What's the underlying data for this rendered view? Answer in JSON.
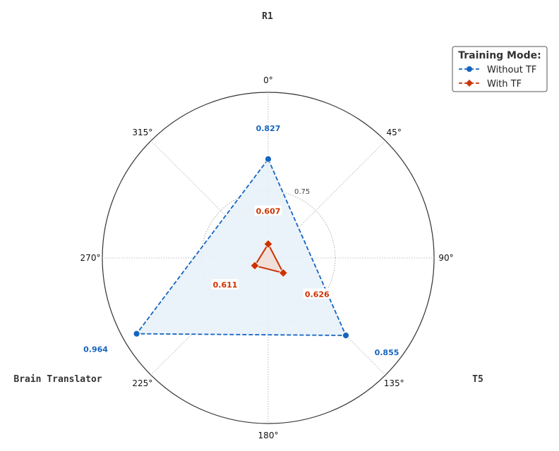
{
  "chart_data": {
    "type": "radar",
    "categories": [
      "R1",
      "T5",
      "Brain Translator"
    ],
    "angular_ticks": [
      "0°",
      "45°",
      "90°",
      "135°",
      "180°",
      "225°",
      "270°",
      "315°"
    ],
    "radial_tick_label": "0.75",
    "series": [
      {
        "name": "Without TF",
        "values": [
          0.827,
          0.855,
          0.964
        ],
        "labels": [
          "0.827",
          "0.855",
          "0.964"
        ],
        "color": "#1565C0",
        "marker": "circle",
        "linestyle": "dashed",
        "fill": "#e8f1fa"
      },
      {
        "name": "With TF",
        "values": [
          0.607,
          0.626,
          0.611
        ],
        "labels": [
          "0.607",
          "0.626",
          "0.611"
        ],
        "color": "#cc3300",
        "marker": "diamond",
        "linestyle": "solid",
        "fill": "#f3d7cc"
      }
    ],
    "legend": {
      "title": "Training Mode:",
      "placement": "top-right"
    },
    "grid": true
  }
}
